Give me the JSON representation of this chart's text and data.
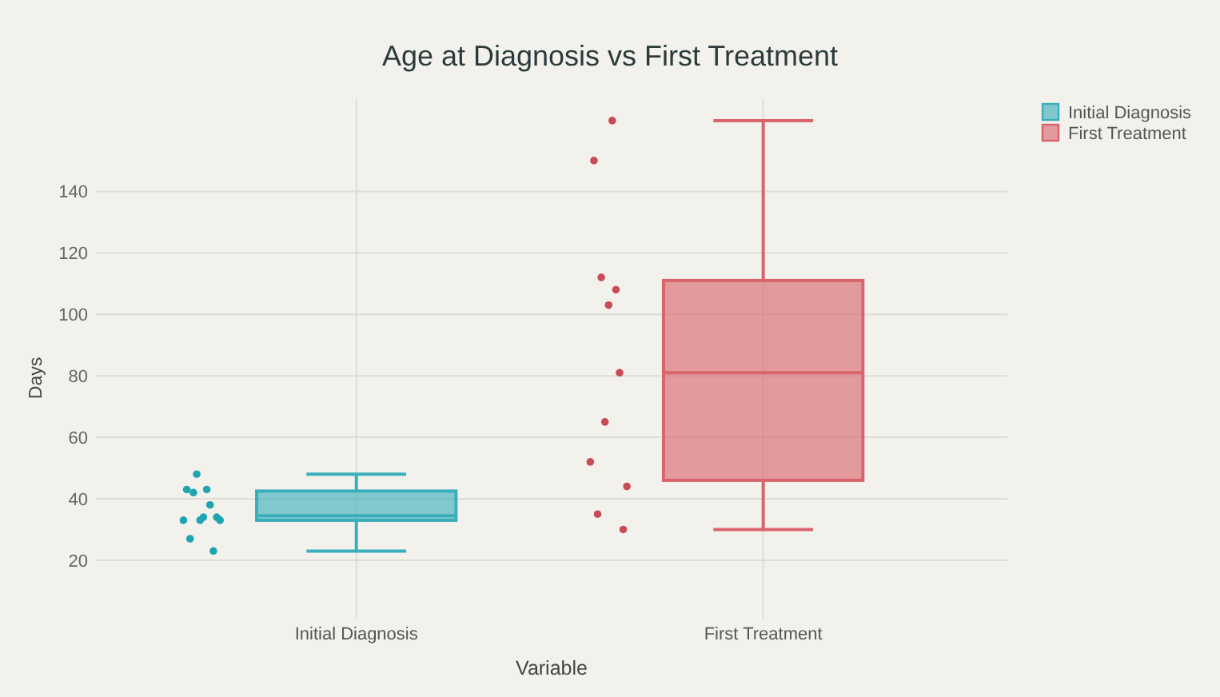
{
  "chart_data": {
    "type": "box",
    "title": "Age at Diagnosis vs First Treatment",
    "xlabel": "Variable",
    "ylabel": "Days",
    "categories": [
      "Initial Diagnosis",
      "First Treatment"
    ],
    "series": [
      {
        "name": "Initial Diagnosis",
        "color": "#3aafbc",
        "boxes": [
          {
            "low": 23,
            "q1": 33,
            "median": 34.5,
            "q3": 42.5,
            "high": 48
          },
          null
        ]
      },
      {
        "name": "First Treatment",
        "color": "#d9646c",
        "boxes": [
          null,
          {
            "low": 30,
            "q1": 46,
            "median": 81,
            "q3": 111,
            "high": 163
          }
        ]
      },
      {
        "type": "scatter",
        "color": "#1fa5b0",
        "x": [
          "Initial Diagnosis",
          "Initial Diagnosis",
          "Initial Diagnosis",
          "Initial Diagnosis",
          "Initial Diagnosis",
          "Initial Diagnosis",
          "Initial Diagnosis",
          "Initial Diagnosis",
          "Initial Diagnosis",
          "Initial Diagnosis",
          "Initial Diagnosis",
          "Initial Diagnosis"
        ],
        "values": [
          33,
          43,
          27,
          42,
          48,
          33,
          34,
          43,
          38,
          23,
          34,
          33
        ]
      },
      {
        "type": "scatter",
        "color": "#c84b55",
        "x": [
          "First Treatment",
          "First Treatment",
          "First Treatment",
          "First Treatment",
          "First Treatment",
          "First Treatment",
          "First Treatment",
          "First Treatment",
          "First Treatment",
          "First Treatment",
          "First Treatment"
        ],
        "values": [
          52,
          150,
          35,
          112,
          65,
          103,
          163,
          108,
          81,
          30,
          44
        ]
      }
    ],
    "ylim": [
      1,
      170
    ],
    "yticks": [
      20,
      40,
      60,
      80,
      100,
      120,
      140
    ],
    "grid": true,
    "legend": "top right",
    "marker": "circle"
  }
}
